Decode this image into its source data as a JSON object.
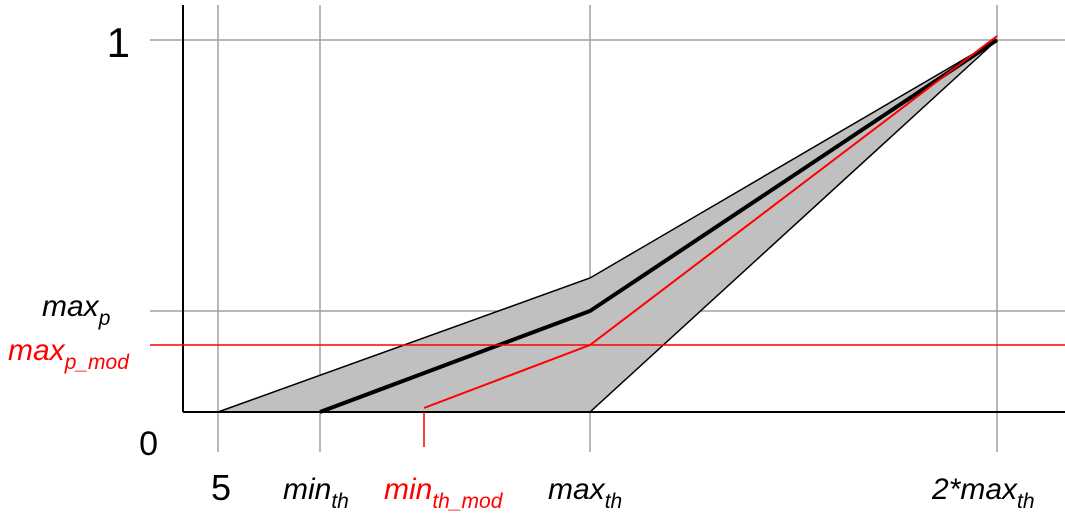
{
  "colors": {
    "grid": "#a0a0a0",
    "band_fill": "#c0c0c0",
    "main_line": "#000000",
    "modified": "#ff0000",
    "axis": "#000000"
  },
  "y_labels": {
    "one": "1",
    "zero": "0",
    "max_p_base": "max",
    "max_p_sub": "p",
    "max_p_mod_base": "max",
    "max_p_mod_sub": "p_mod"
  },
  "x_labels": {
    "five": "5",
    "min_th_base": "min",
    "min_th_sub": "th",
    "min_th_mod_base": "min",
    "min_th_mod_sub": "th_mod",
    "max_th_base": "max",
    "max_th_sub": "th",
    "two_max_th_base": "2*max",
    "two_max_th_sub": "th"
  }
}
